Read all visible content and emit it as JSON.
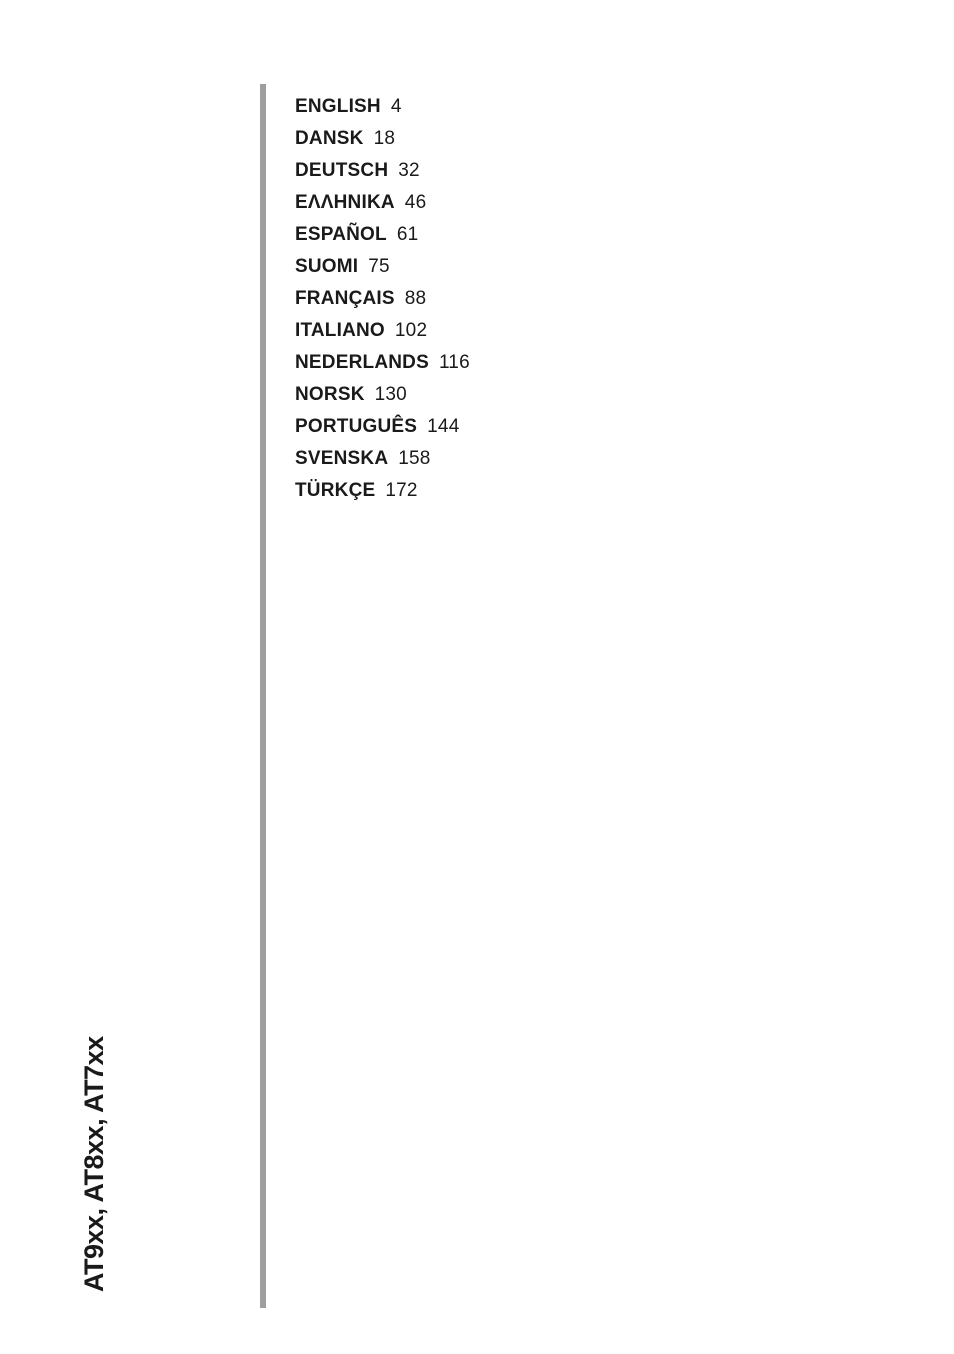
{
  "colors": {
    "page_bg": "#ffffff",
    "text": "#1a1a1a",
    "rule": "#9e9e9e"
  },
  "typography": {
    "toc_label_weight": 700,
    "toc_label_size_pt": 14,
    "toc_page_weight": 400,
    "toc_page_size_pt": 14,
    "spine_weight": 700,
    "spine_size_pt": 20
  },
  "spine_label": "AT9xx, AT8xx, AT7xx",
  "toc": [
    {
      "language": "English",
      "page": "4"
    },
    {
      "language": "Dansk",
      "page": "18"
    },
    {
      "language": "Deutsch",
      "page": "32"
    },
    {
      "language": "Ελληνικα",
      "page": "46"
    },
    {
      "language": "Español",
      "page": "61"
    },
    {
      "language": "Suomi",
      "page": "75"
    },
    {
      "language": "Français",
      "page": "88"
    },
    {
      "language": "Italiano",
      "page": "102"
    },
    {
      "language": "Nederlands",
      "page": "116"
    },
    {
      "language": "Norsk",
      "page": "130"
    },
    {
      "language": "Português",
      "page": "144"
    },
    {
      "language": "Svenska",
      "page": "158"
    },
    {
      "language": "Türkçe",
      "page": "172"
    }
  ]
}
